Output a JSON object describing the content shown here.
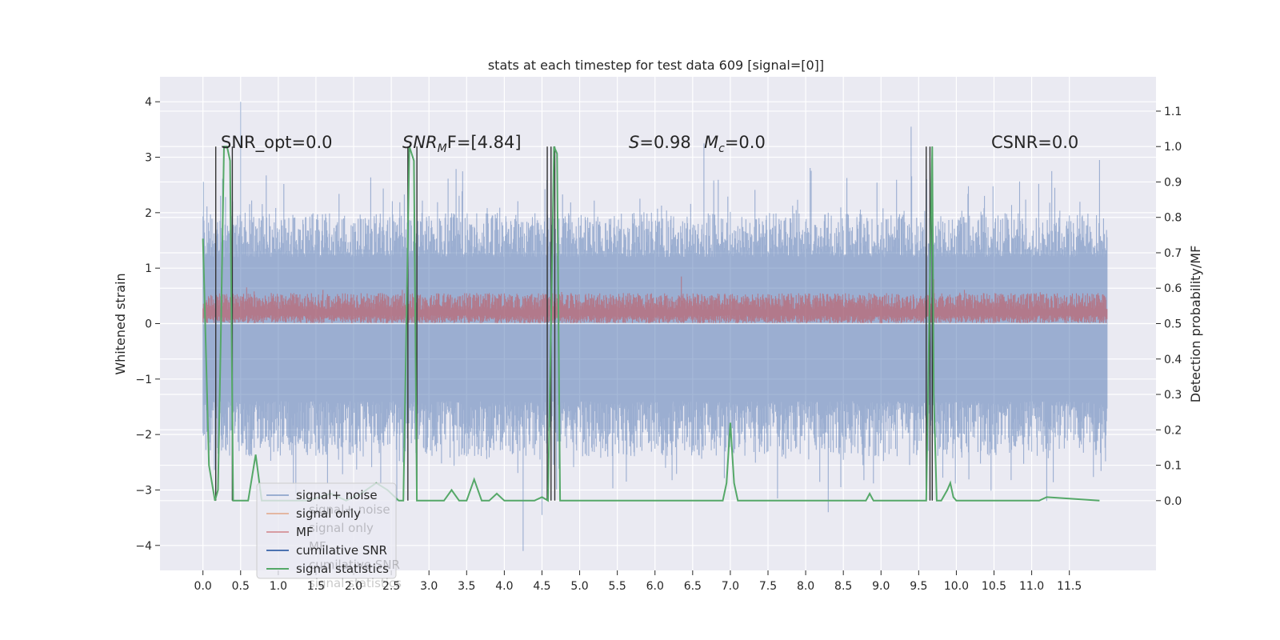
{
  "chart_data": {
    "type": "line",
    "title": "stats at each timestep for test data 609 [signal=[0]]",
    "xlabel": "",
    "ylabel": "Whitened strain",
    "y2label": "Detection probability/MF",
    "xlim": [
      -0.57,
      12.65
    ],
    "ylim": [
      -4.45,
      4.45
    ],
    "y2lim": [
      -0.197,
      1.197
    ],
    "x_ticks": [
      0.0,
      0.5,
      1.0,
      1.5,
      2.0,
      2.5,
      3.0,
      3.5,
      4.0,
      4.5,
      5.0,
      5.5,
      6.0,
      6.5,
      7.0,
      7.5,
      8.0,
      8.5,
      9.0,
      9.5,
      10.0,
      10.5,
      11.0,
      11.5
    ],
    "x_tick_labels": [
      "0.0",
      "0.5",
      "1.0",
      "1.5",
      "2.0",
      "2.5",
      "3.0",
      "3.5",
      "4.0",
      "4.5",
      "5.0",
      "5.5",
      "6.0",
      "6.5",
      "7.0",
      "7.5",
      "8.0",
      "8.5",
      "9.0",
      "9.5",
      "10.0",
      "10.5",
      "11.0",
      "11.5"
    ],
    "y_ticks": [
      -4,
      -3,
      -2,
      -1,
      0,
      1,
      2,
      3,
      4
    ],
    "y_tick_labels": [
      "−4",
      "−3",
      "−2",
      "−1",
      "0",
      "1",
      "2",
      "3",
      "4"
    ],
    "y2_ticks": [
      0.0,
      0.1,
      0.2,
      0.3,
      0.4,
      0.5,
      0.6,
      0.7,
      0.8,
      0.9,
      1.0,
      1.1
    ],
    "y2_tick_labels": [
      "0.0",
      "0.1",
      "0.2",
      "0.3",
      "0.4",
      "0.5",
      "0.6",
      "0.7",
      "0.8",
      "0.9",
      "1.0",
      "1.1"
    ],
    "grid": true,
    "legend_position": "lower-left",
    "background_color": "#EAEAF2",
    "annotations": {
      "snr_opt": "SNR_opt=0.0",
      "snr_mf_main": "SNR",
      "snr_mf_sub": "M",
      "snr_mf_rest": "F=[4.84]",
      "s_main": "S",
      "s_rest": "=0.98",
      "mc_main": "M",
      "mc_sub": "c",
      "mc_rest": "=0.0",
      "csnr": "CSNR=0.0"
    },
    "legend": [
      {
        "name": "signal+ noise",
        "color": "#4C72B0",
        "opacity": 0.5
      },
      {
        "name": "signal only",
        "color": "#DD8452",
        "opacity": 0.5
      },
      {
        "name": "MF",
        "color": "#C44E52",
        "opacity": 0.5
      },
      {
        "name": "cumilative SNR",
        "color": "#4C72B0",
        "opacity": 1
      },
      {
        "name": "signal statistics",
        "color": "#55A868",
        "opacity": 1
      }
    ],
    "ghost_legend": [
      "signal+ noise",
      "signal only",
      "MF",
      "cumilative SNR",
      "signal statistics"
    ],
    "series": [
      {
        "name": "signal+ noise",
        "kind": "noise_band",
        "color": "#4C72B0",
        "x_range": [
          0.0,
          12.0
        ],
        "upper_typical": [
          1.2,
          2.0
        ],
        "lower_typical": [
          -1.4,
          -2.4
        ],
        "peaks": [
          [
            0.5,
            4.0
          ],
          [
            4.25,
            -4.1
          ],
          [
            6.65,
            3.25
          ],
          [
            9.4,
            3.55
          ],
          [
            11.2,
            -3.2
          ],
          [
            11.9,
            2.95
          ],
          [
            8.3,
            -3.4
          ],
          [
            4.5,
            -3.45
          ]
        ]
      },
      {
        "name": "MF",
        "kind": "noise_band",
        "color": "#C44E52",
        "x_range": [
          0.0,
          12.0
        ],
        "band": [
          0.0,
          0.55
        ],
        "peaks": [
          [
            6.35,
            0.85
          ],
          [
            9.7,
            0.8
          ]
        ]
      },
      {
        "name": "signal statistics",
        "kind": "line",
        "color": "#55A868",
        "axis": "right",
        "x": [
          0.0,
          0.08,
          0.16,
          0.2,
          0.24,
          0.28,
          0.32,
          0.36,
          0.4,
          0.44,
          0.5,
          0.6,
          0.7,
          0.78,
          0.86,
          1.0,
          1.4,
          1.7,
          1.9,
          2.1,
          2.3,
          2.45,
          2.6,
          2.66,
          2.7,
          2.74,
          2.8,
          2.84,
          2.9,
          3.0,
          3.2,
          3.3,
          3.4,
          3.5,
          3.6,
          3.7,
          3.8,
          3.9,
          4.0,
          4.4,
          4.5,
          4.58,
          4.62,
          4.66,
          4.7,
          4.74,
          4.8,
          5.0,
          6.0,
          6.9,
          6.95,
          7.0,
          7.05,
          7.1,
          7.5,
          8.5,
          8.8,
          8.85,
          8.9,
          9.6,
          9.64,
          9.68,
          9.7,
          9.74,
          9.8,
          9.88,
          9.92,
          9.96,
          10.0,
          10.5,
          11.1,
          11.2,
          11.9
        ],
        "y": [
          0.74,
          0.1,
          0.0,
          0.03,
          0.5,
          1.0,
          1.0,
          0.96,
          0.0,
          0.0,
          0.0,
          0.0,
          0.13,
          0.0,
          0.0,
          0.0,
          0.0,
          0.02,
          0.0,
          0.02,
          0.05,
          0.03,
          0.0,
          0.0,
          0.5,
          1.0,
          0.96,
          0.0,
          0.0,
          0.0,
          0.0,
          0.03,
          0.0,
          0.0,
          0.06,
          0.0,
          0.0,
          0.02,
          0.0,
          0.0,
          0.01,
          0.0,
          0.5,
          1.0,
          0.98,
          0.0,
          0.0,
          0.0,
          0.0,
          0.0,
          0.05,
          0.22,
          0.05,
          0.0,
          0.0,
          0.0,
          0.0,
          0.02,
          0.0,
          0.0,
          0.5,
          1.0,
          0.3,
          0.0,
          0.0,
          0.03,
          0.05,
          0.01,
          0.0,
          0.0,
          0.0,
          0.01,
          0.0
        ]
      }
    ],
    "vertical_lines_x": [
      0.17,
      0.39,
      2.72,
      2.84,
      4.57,
      4.62,
      4.67,
      9.6,
      9.65,
      9.68
    ]
  }
}
